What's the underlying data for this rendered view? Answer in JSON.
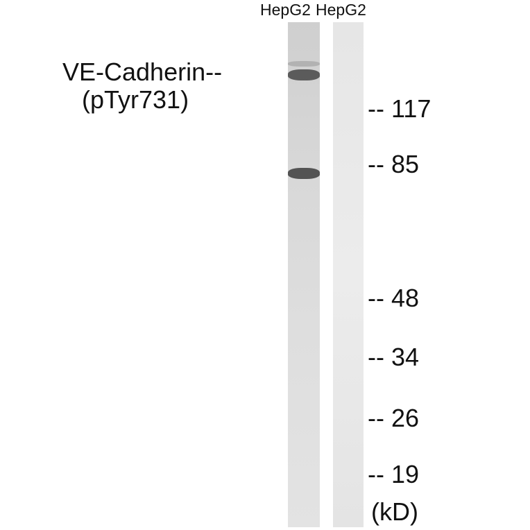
{
  "lanes": [
    {
      "label": "HepG2"
    },
    {
      "label": "HepG2"
    }
  ],
  "protein_label": {
    "line1": "VE-Cadherin--",
    "line2": "(pTyr731)"
  },
  "markers": [
    "-- 117",
    "-- 85",
    "-- 48",
    "-- 34",
    "-- 26",
    "-- 19"
  ],
  "unit": "(kD)"
}
